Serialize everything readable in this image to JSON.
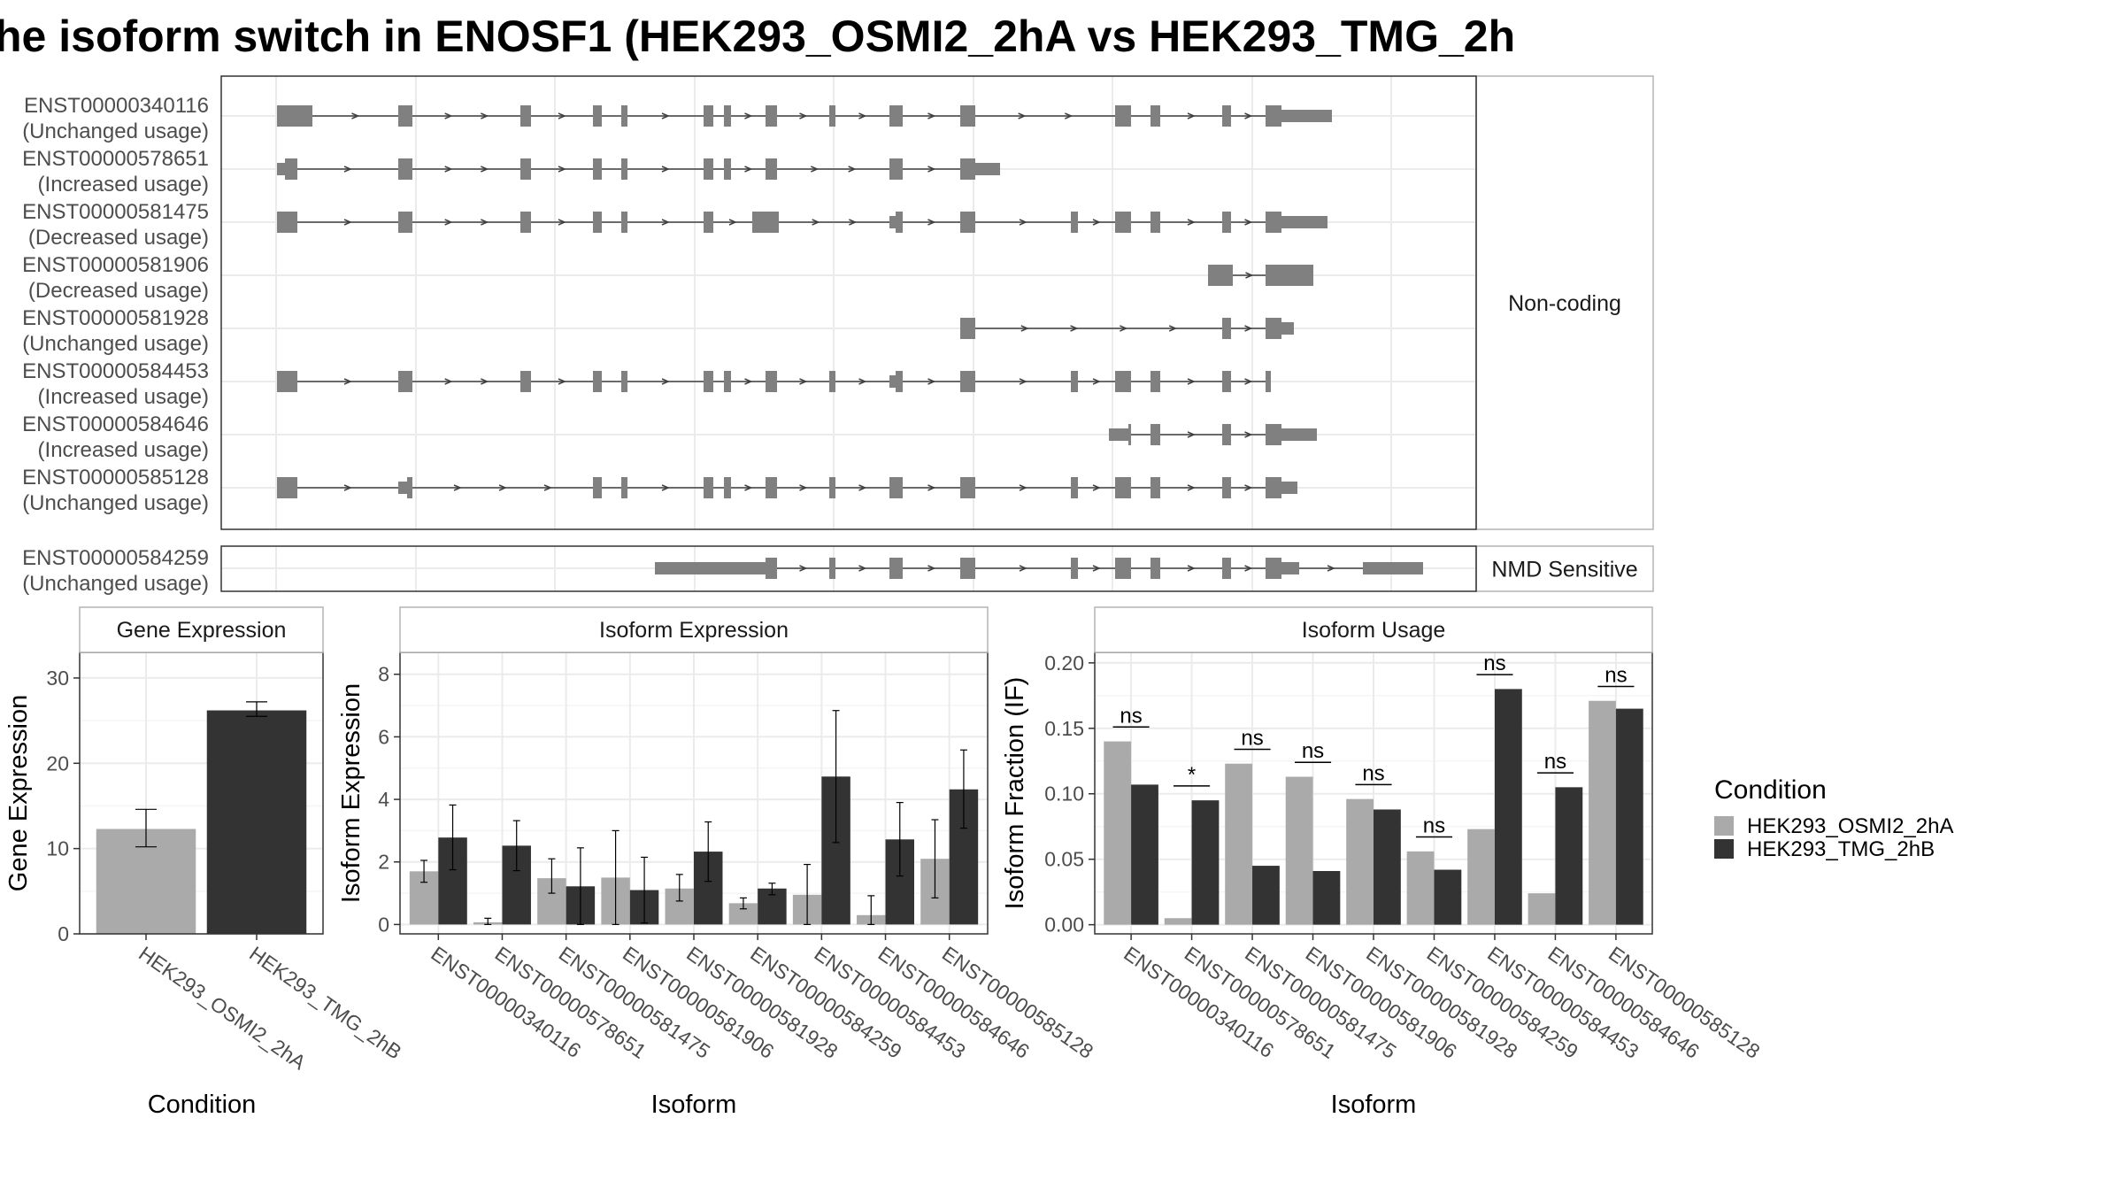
{
  "title": "he isoform switch in ENOSF1 (HEK293_OSMI2_2hA vs HEK293_TMG_2h",
  "colors": {
    "condition_a": "#aaaaaa",
    "condition_b": "#333333",
    "exon": "#808080",
    "intron": "#404040",
    "grid_major": "#ebebeb",
    "grid_minor": "#f5f5f5",
    "panel_border": "#333333",
    "strip_border": "#b3b3b3",
    "strip_fill": "#ffffff"
  },
  "chart_data": [
    {
      "type": "gene-structure",
      "facets": [
        {
          "label": "Non-coding",
          "transcripts": [
            {
              "id": "ENST00000340116",
              "usage": "(Unchanged usage)"
            },
            {
              "id": "ENST00000578651",
              "usage": "(Increased usage)"
            },
            {
              "id": "ENST00000581475",
              "usage": "(Decreased usage)"
            },
            {
              "id": "ENST00000581906",
              "usage": "(Decreased usage)"
            },
            {
              "id": "ENST00000581928",
              "usage": "(Unchanged usage)"
            },
            {
              "id": "ENST00000584453",
              "usage": "(Increased usage)"
            },
            {
              "id": "ENST00000584646",
              "usage": "(Increased usage)"
            },
            {
              "id": "ENST00000585128",
              "usage": "(Unchanged usage)"
            }
          ]
        },
        {
          "label": "NMD Sensitive",
          "transcripts": [
            {
              "id": "ENST00000584259",
              "usage": "(Unchanged usage)"
            }
          ]
        }
      ]
    },
    {
      "type": "bar",
      "title": "Gene Expression",
      "xlabel": "Condition",
      "ylabel": "Gene Expression",
      "ylim": [
        0,
        33
      ],
      "yticks": [
        0,
        10,
        20,
        30
      ],
      "categories": [
        "HEK293_OSMI2_2hA",
        "HEK293_TMG_2hB"
      ],
      "values": [
        12.3,
        26.2
      ],
      "errors": [
        [
          10.2,
          14.6
        ],
        [
          25.5,
          27.2
        ]
      ]
    },
    {
      "type": "bar",
      "title": "Isoform Expression",
      "xlabel": "Isoform",
      "ylabel": "Isoform Expression",
      "ylim": [
        -0.3,
        8.7
      ],
      "yticks": [
        0,
        2,
        4,
        6,
        8
      ],
      "categories": [
        "ENST00000340116",
        "ENST00000578651",
        "ENST00000581475",
        "ENST00000581906",
        "ENST00000581928",
        "ENST00000584259",
        "ENST00000584453",
        "ENST00000584646",
        "ENST00000585128"
      ],
      "series": [
        {
          "name": "HEK293_OSMI2_2hA",
          "values": [
            1.7,
            0.07,
            1.48,
            1.5,
            1.15,
            0.68,
            0.95,
            0.3,
            2.1
          ],
          "errors": [
            [
              1.35,
              2.05
            ],
            [
              0.0,
              0.2
            ],
            [
              1.0,
              2.1
            ],
            [
              0.0,
              3.0
            ],
            [
              0.75,
              1.6
            ],
            [
              0.5,
              0.85
            ],
            [
              0.0,
              1.92
            ],
            [
              0.0,
              0.92
            ],
            [
              0.85,
              3.35
            ]
          ]
        },
        {
          "name": "HEK293_TMG_2hB",
          "values": [
            2.78,
            2.52,
            1.22,
            1.1,
            2.33,
            1.15,
            4.73,
            2.72,
            4.32
          ],
          "errors": [
            [
              1.75,
              3.82
            ],
            [
              1.72,
              3.32
            ],
            [
              0.0,
              2.45
            ],
            [
              0.05,
              2.15
            ],
            [
              1.38,
              3.28
            ],
            [
              0.95,
              1.32
            ],
            [
              2.62,
              6.84
            ],
            [
              1.55,
              3.9
            ],
            [
              3.08,
              5.58
            ]
          ]
        }
      ]
    },
    {
      "type": "bar",
      "title": "Isoform Usage",
      "xlabel": "Isoform",
      "ylabel": "Isoform Fraction (IF)",
      "ylim": [
        -0.007,
        0.208
      ],
      "yticks": [
        0.0,
        0.05,
        0.1,
        0.15,
        0.2
      ],
      "yticklabels": [
        "0.00",
        "0.05",
        "0.10",
        "0.15",
        "0.20"
      ],
      "categories": [
        "ENST00000340116",
        "ENST00000578651",
        "ENST00000581475",
        "ENST00000581906",
        "ENST00000581928",
        "ENST00000584259",
        "ENST00000584453",
        "ENST00000584646",
        "ENST00000585128"
      ],
      "series": [
        {
          "name": "HEK293_OSMI2_2hA",
          "values": [
            0.14,
            0.005,
            0.123,
            0.113,
            0.096,
            0.056,
            0.073,
            0.024,
            0.171
          ]
        },
        {
          "name": "HEK293_TMG_2hB",
          "values": [
            0.107,
            0.095,
            0.045,
            0.041,
            0.088,
            0.042,
            0.18,
            0.105,
            0.165
          ]
        }
      ],
      "significance": [
        "ns",
        "*",
        "ns",
        "ns",
        "ns",
        "ns",
        "ns",
        "ns",
        "ns"
      ]
    }
  ],
  "legend": {
    "title": "Condition",
    "items": [
      "HEK293_OSMI2_2hA",
      "HEK293_TMG_2hB"
    ]
  }
}
